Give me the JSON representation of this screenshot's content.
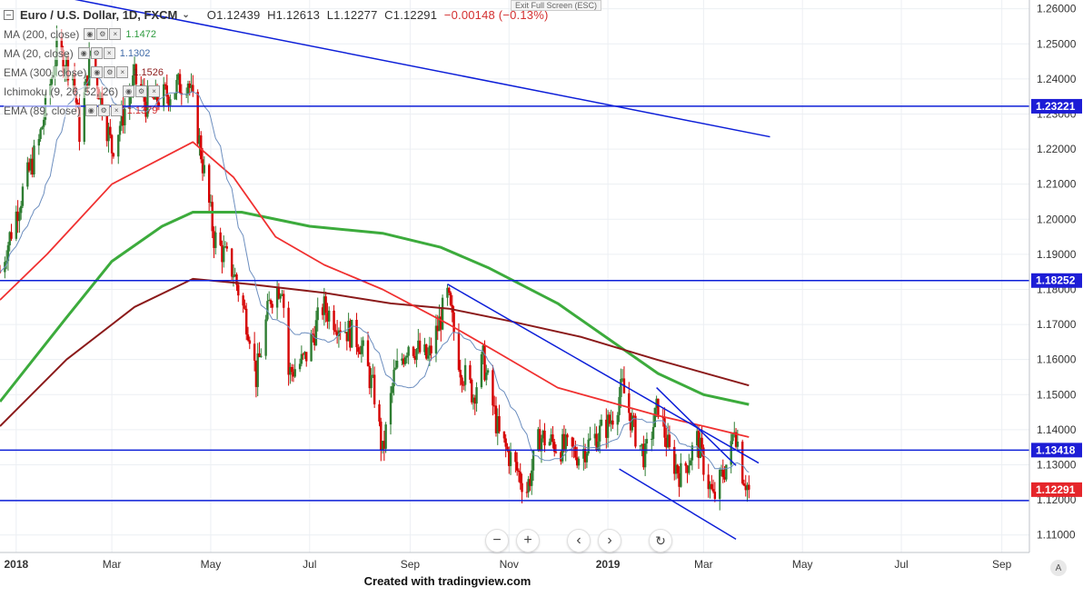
{
  "header": {
    "symbol": "Euro / U.S. Dollar, 1D, FXCM",
    "open": "O1.12439",
    "high": "H1.12613",
    "low": "L1.12277",
    "close": "C1.12291",
    "change": "−0.00148 (−0.13%)",
    "exit_full_screen": "Exit Full Screen (ESC)"
  },
  "indicators": [
    {
      "name": "MA (200, close)",
      "value": "1.1472",
      "color": "#2e9b3f"
    },
    {
      "name": "MA (20, close)",
      "value": "1.1302",
      "color": "#3f6aa8"
    },
    {
      "name": "EMA (300, close)",
      "value": "1.1526",
      "color": "#8b1a1a"
    },
    {
      "name": "Ichimoku (9, 26, 52, 26)",
      "value": "",
      "color": "#555555"
    },
    {
      "name": "EMA (89, close)",
      "value": "1.1379",
      "color": "#d32f2f"
    }
  ],
  "navigation": {
    "zoom_out": "−",
    "zoom_in": "+",
    "scroll_left": "‹",
    "scroll_right": "›",
    "reset": "↻"
  },
  "footer": {
    "credit": "Created with tradingview.com"
  },
  "auto_scale_label": "A",
  "colors": {
    "up": "#2e7d32",
    "down": "#d50000",
    "ma200": "#3cab3c",
    "ema300": "#8b1a1a",
    "ema89": "#f03030",
    "ma20": "#6c8ebf",
    "trendline": "#0d1fd8",
    "price_label": "#1d1dd6",
    "last_price": "#e5252a"
  },
  "chart_data": {
    "type": "candlestick",
    "title": "Euro / U.S. Dollar, 1D, FXCM",
    "ylim": [
      1.105,
      1.2625
    ],
    "y_ticks": [
      1.11,
      1.12,
      1.13,
      1.14,
      1.15,
      1.16,
      1.17,
      1.18,
      1.19,
      1.2,
      1.21,
      1.22,
      1.23,
      1.24,
      1.25,
      1.26
    ],
    "x_ticks": [
      {
        "date": "2018-01-01",
        "label": "2018"
      },
      {
        "date": "2018-03-01",
        "label": "Mar"
      },
      {
        "date": "2018-05-01",
        "label": "May"
      },
      {
        "date": "2018-07-01",
        "label": "Jul"
      },
      {
        "date": "2018-09-01",
        "label": "Sep"
      },
      {
        "date": "2018-11-01",
        "label": "Nov"
      },
      {
        "date": "2019-01-01",
        "label": "2019"
      },
      {
        "date": "2019-03-01",
        "label": "Mar"
      },
      {
        "date": "2019-05-01",
        "label": "May"
      },
      {
        "date": "2019-07-01",
        "label": "Jul"
      },
      {
        "date": "2019-09-01",
        "label": "Sep"
      }
    ],
    "date_range": [
      "2017-12-22",
      "2019-09-18"
    ],
    "last_close": 1.12291,
    "horizontal_levels": [
      {
        "value": 1.23221,
        "label": "1.23221"
      },
      {
        "value": 1.18252,
        "label": "1.18252"
      },
      {
        "value": 1.13418,
        "label": "1.13418"
      },
      {
        "value": 1.1198,
        "label": ""
      }
    ],
    "price_labels": [
      "1.23221",
      "1.18252",
      "1.13418",
      "1.12291"
    ],
    "trendlines": [
      {
        "from": [
          "2018-01-26",
          1.2637
        ],
        "to": [
          "2019-04-11",
          1.2235
        ]
      },
      {
        "from": [
          "2018-09-24",
          1.1815
        ],
        "to": [
          "2019-04-04",
          1.1305
        ]
      },
      {
        "from": [
          "2019-01-08",
          1.1288
        ],
        "to": [
          "2019-03-21",
          1.1088
        ]
      },
      {
        "from": [
          "2019-01-31",
          1.152
        ],
        "to": [
          "2019-03-21",
          1.1298
        ]
      }
    ],
    "anchors": [
      [
        "2017-12-22",
        1.185
      ],
      [
        "2018-01-03",
        1.205
      ],
      [
        "2018-01-15",
        1.222
      ],
      [
        "2018-01-26",
        1.248
      ],
      [
        "2018-02-05",
        1.242
      ],
      [
        "2018-02-09",
        1.225
      ],
      [
        "2018-02-16",
        1.248
      ],
      [
        "2018-03-01",
        1.22
      ],
      [
        "2018-03-15",
        1.24
      ],
      [
        "2018-03-22",
        1.233
      ],
      [
        "2018-04-02",
        1.235
      ],
      [
        "2018-04-17",
        1.24
      ],
      [
        "2018-04-23",
        1.225
      ],
      [
        "2018-05-03",
        1.195
      ],
      [
        "2018-05-15",
        1.185
      ],
      [
        "2018-05-25",
        1.168
      ],
      [
        "2018-05-29",
        1.155
      ],
      [
        "2018-06-07",
        1.178
      ],
      [
        "2018-06-14",
        1.182
      ],
      [
        "2018-06-18",
        1.156
      ],
      [
        "2018-06-28",
        1.16
      ],
      [
        "2018-07-09",
        1.175
      ],
      [
        "2018-07-20",
        1.17
      ],
      [
        "2018-08-01",
        1.165
      ],
      [
        "2018-08-10",
        1.15
      ],
      [
        "2018-08-15",
        1.133
      ],
      [
        "2018-08-22",
        1.155
      ],
      [
        "2018-08-31",
        1.165
      ],
      [
        "2018-09-12",
        1.16
      ],
      [
        "2018-09-24",
        1.178
      ],
      [
        "2018-10-02",
        1.158
      ],
      [
        "2018-10-10",
        1.15
      ],
      [
        "2018-10-16",
        1.16
      ],
      [
        "2018-10-26",
        1.138
      ],
      [
        "2018-11-12",
        1.123
      ],
      [
        "2018-11-20",
        1.138
      ],
      [
        "2018-12-03",
        1.135
      ],
      [
        "2018-12-14",
        1.133
      ],
      [
        "2019-01-02",
        1.142
      ],
      [
        "2019-01-10",
        1.152
      ],
      [
        "2019-01-17",
        1.14
      ],
      [
        "2019-01-24",
        1.132
      ],
      [
        "2019-02-01",
        1.147
      ],
      [
        "2019-02-08",
        1.133
      ],
      [
        "2019-02-15",
        1.127
      ],
      [
        "2019-02-25",
        1.137
      ],
      [
        "2019-03-07",
        1.12
      ],
      [
        "2019-03-18",
        1.134
      ],
      [
        "2019-03-20",
        1.142
      ],
      [
        "2019-03-25",
        1.128
      ],
      [
        "2019-03-29",
        1.1229
      ]
    ],
    "ma200_anchors": [
      [
        "2017-12-22",
        1.148
      ],
      [
        "2018-02-01",
        1.172
      ],
      [
        "2018-03-01",
        1.188
      ],
      [
        "2018-04-01",
        1.198
      ],
      [
        "2018-04-20",
        1.202
      ],
      [
        "2018-05-20",
        1.202
      ],
      [
        "2018-07-01",
        1.198
      ],
      [
        "2018-08-15",
        1.196
      ],
      [
        "2018-09-20",
        1.192
      ],
      [
        "2018-10-20",
        1.186
      ],
      [
        "2018-12-01",
        1.176
      ],
      [
        "2019-01-01",
        1.166
      ],
      [
        "2019-02-01",
        1.156
      ],
      [
        "2019-03-01",
        1.15
      ],
      [
        "2019-03-29",
        1.1472
      ]
    ],
    "ema300_anchors": [
      [
        "2017-12-22",
        1.141
      ],
      [
        "2018-02-01",
        1.16
      ],
      [
        "2018-03-15",
        1.175
      ],
      [
        "2018-04-20",
        1.183
      ],
      [
        "2018-05-25",
        1.1815
      ],
      [
        "2018-07-10",
        1.179
      ],
      [
        "2018-08-20",
        1.176
      ],
      [
        "2018-09-25",
        1.1745
      ],
      [
        "2018-11-01",
        1.171
      ],
      [
        "2018-12-15",
        1.1665
      ],
      [
        "2019-01-31",
        1.16
      ],
      [
        "2019-03-29",
        1.1526
      ]
    ],
    "ema89_anchors": [
      [
        "2017-12-22",
        1.177
      ],
      [
        "2018-01-20",
        1.19
      ],
      [
        "2018-03-01",
        1.21
      ],
      [
        "2018-04-20",
        1.222
      ],
      [
        "2018-05-15",
        1.212
      ],
      [
        "2018-06-10",
        1.195
      ],
      [
        "2018-07-10",
        1.187
      ],
      [
        "2018-08-15",
        1.18
      ],
      [
        "2018-09-25",
        1.17
      ],
      [
        "2018-10-25",
        1.162
      ],
      [
        "2018-12-01",
        1.152
      ],
      [
        "2019-01-01",
        1.148
      ],
      [
        "2019-02-01",
        1.144
      ],
      [
        "2019-03-01",
        1.141
      ],
      [
        "2019-03-29",
        1.1379
      ]
    ]
  }
}
